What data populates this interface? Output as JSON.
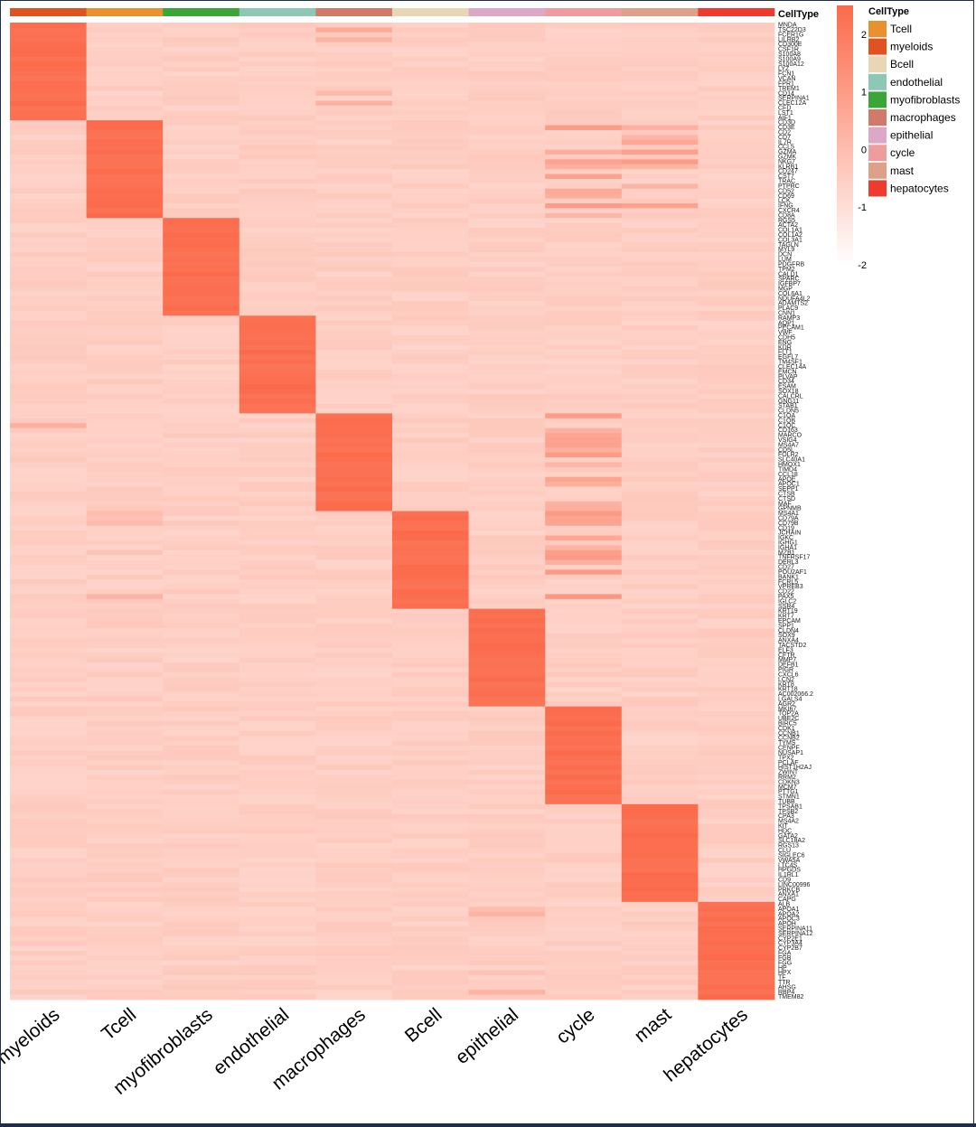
{
  "chart_data": {
    "type": "heatmap",
    "title": "",
    "annotation_title": "CellType",
    "columns": [
      "myeloids",
      "Tcell",
      "myofibroblasts",
      "endothelial",
      "macrophages",
      "Bcell",
      "epithelial",
      "cycle",
      "mast",
      "hepatocytes"
    ],
    "column_colors": {
      "myeloids": "#E0521F",
      "Tcell": "#E8912F",
      "myofibroblasts": "#3AA637",
      "endothelial": "#8DC8B6",
      "macrophages": "#D27A6A",
      "Bcell": "#E8D6B4",
      "epithelial": "#DDA8C8",
      "cycle": "#EE9C9E",
      "mast": "#DFA08A",
      "hepatocytes": "#EE3B2E"
    },
    "legend": {
      "title": "CellType",
      "placement": "right",
      "entries": [
        "Tcell",
        "myeloids",
        "Bcell",
        "endothelial",
        "myofibroblasts",
        "macrophages",
        "epithelial",
        "cycle",
        "mast",
        "hepatocytes"
      ]
    },
    "colorscale": {
      "low_color": "#FFFFFF",
      "high_color": "#FB6A4A",
      "ticks": [
        2,
        1,
        0,
        -1,
        -2
      ],
      "range": [
        -2,
        2.5
      ]
    },
    "row_blocks": [
      {
        "cluster": "myeloids",
        "genes": [
          "MNDA",
          "TSC22D3",
          "FCER1G",
          "LILRB2",
          "CD300E",
          "CSF1R",
          "S100A8",
          "S100A9",
          "S100A12",
          "LYZ",
          "FCN1",
          "VCAN",
          "FPR1",
          "TREM1",
          "CD14",
          "SERPINA1",
          "CLEC12A",
          "CFD",
          "LST1",
          "AIF1"
        ]
      },
      {
        "cluster": "Tcell",
        "genes": [
          "CD3D",
          "CD3E",
          "CD2",
          "CD7",
          "IL7R",
          "CCL5",
          "GZMA",
          "GZMK",
          "NKG7",
          "KLRB1",
          "CD247",
          "CST7",
          "TRAC",
          "PTPRC",
          "CD52",
          "CD69",
          "LCK",
          "IFNG",
          "CXCR4",
          "CD8A"
        ]
      },
      {
        "cluster": "myofibroblasts",
        "genes": [
          "RGS5",
          "ACTA2",
          "COL1A1",
          "COL1A2",
          "COL3A1",
          "TAGLN",
          "MYL9",
          "DCN",
          "LUM",
          "PDGFRB",
          "TPM2",
          "CALD1",
          "SPARC",
          "IGFBP7",
          "MGP",
          "COL6A1",
          "NDUFA4L2",
          "ADAMTS2",
          "PLAC9",
          "CNN1"
        ]
      },
      {
        "cluster": "endothelial",
        "genes": [
          "RAMP3",
          "AQP1",
          "PECAM1",
          "VWF",
          "CDH5",
          "ENG",
          "KDR",
          "FLT1",
          "EGFL7",
          "TM4SF1",
          "CLEC14A",
          "EMCN",
          "PLVAP",
          "CD34",
          "ESAM",
          "SOX18",
          "CALCRL",
          "GNG11",
          "STAB1",
          "CLDN5"
        ]
      },
      {
        "cluster": "macrophages",
        "genes": [
          "C1QA",
          "C1QB",
          "C1QC",
          "CD163",
          "MARCO",
          "VSIG4",
          "MS4A7",
          "CD5L",
          "FOLR2",
          "SLC40A1",
          "HMOX1",
          "TIMD4",
          "CCL18",
          "APOE",
          "APOC1",
          "SEPP1",
          "CTSB",
          "CTSD",
          "MAF",
          "GPNMB"
        ]
      },
      {
        "cluster": "Bcell",
        "genes": [
          "MS4A1",
          "CD79A",
          "CD79B",
          "CD19",
          "JCHAIN",
          "IGKC",
          "IGHG1",
          "IGHA1",
          "MZB1",
          "TNFRSF17",
          "DERL3",
          "CD27",
          "POU2AF1",
          "BANK1",
          "FCRL5",
          "VPREB3",
          "CD22",
          "PAX5",
          "IGLC2",
          "SSR4"
        ]
      },
      {
        "cluster": "epithelial",
        "genes": [
          "KRT19",
          "KRT7",
          "EPCAM",
          "SPP1",
          "CLDN4",
          "SOX9",
          "ANXA4",
          "TACSTD2",
          "ELF3",
          "CFTR",
          "MMP7",
          "DEFB1",
          "PIGR",
          "CXCL6",
          "LCN2",
          "KRT8",
          "KRT18",
          "AC002066.2",
          "LGALS4",
          "AGR2"
        ]
      },
      {
        "cluster": "cycle",
        "genes": [
          "MKI67",
          "TOP2A",
          "UBE2C",
          "BIRC5",
          "CDK1",
          "CCNB1",
          "CCNB2",
          "TYMS",
          "CENPF",
          "NUSAP1",
          "TPX2",
          "PCLAF",
          "HIST1H2AJ",
          "ZWINT",
          "RRM2",
          "CDKN3",
          "MCM7",
          "PTTG1",
          "STMN1",
          "TUBB"
        ]
      },
      {
        "cluster": "mast",
        "genes": [
          "TPSAB1",
          "TPSB2",
          "CPA3",
          "MS4A2",
          "KIT",
          "HDC",
          "GATA2",
          "SLC18A2",
          "RGS13",
          "CLU",
          "SIGLEC6",
          "VWA5A",
          "LTC4S",
          "HPGDS",
          "IL1RL1",
          "CD9",
          "LINC00996",
          "PRKCB",
          "ANXA1",
          "CAPG"
        ]
      },
      {
        "cluster": "hepatocytes",
        "genes": [
          "ALB",
          "APOA1",
          "APOA2",
          "APOC3",
          "APOH",
          "SERPINA11",
          "SERPINA12",
          "CYP2E1",
          "CYP3A4",
          "CYP2B7",
          "FGA",
          "FGB",
          "FGG",
          "HP",
          "HPX",
          "TF",
          "TTR",
          "AHSG",
          "RBP4",
          "TMEM82"
        ]
      }
    ],
    "note_values": "z-scored expression: each gene row peaks (about 2.5) in its own cell-type column and is near -0.5 elsewhere; rows are grouped into 10 blocks of 20 genes matching the column order"
  }
}
